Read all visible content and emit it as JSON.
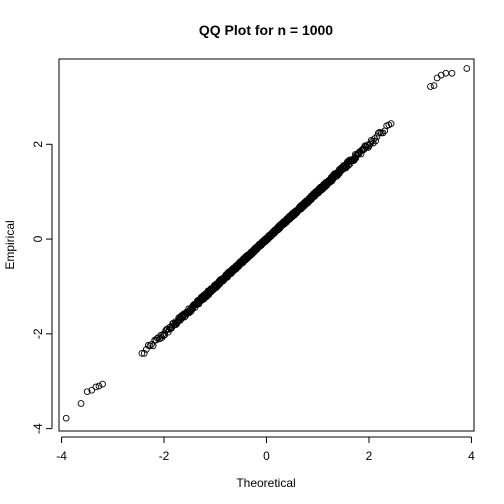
{
  "chart_data": {
    "type": "scatter",
    "title": "QQ Plot for n = 1000",
    "xlabel": "Theoretical",
    "ylabel": "Empirical",
    "n": 1000,
    "xlim": [
      -4.05,
      4.05
    ],
    "ylim": [
      -4.05,
      3.8
    ],
    "xticks": [
      -4,
      -2,
      0,
      2,
      4
    ],
    "yticks": [
      -4,
      -2,
      0,
      2
    ],
    "xtick_labels": [
      "-4",
      "-2",
      "0",
      "2",
      "4"
    ],
    "ytick_labels": [
      "-4",
      "-2",
      "0",
      "2"
    ],
    "marker": "open-circle",
    "grid": false,
    "legend": "none",
    "tail_points": [
      {
        "x": -3.91,
        "y": -3.78
      },
      {
        "x": -3.62,
        "y": -3.47
      },
      {
        "x": -3.5,
        "y": -3.22
      },
      {
        "x": -3.41,
        "y": -3.19
      },
      {
        "x": -3.33,
        "y": -3.12
      },
      {
        "x": -3.27,
        "y": -3.1
      },
      {
        "x": -3.2,
        "y": -3.06
      },
      {
        "x": 3.2,
        "y": 3.22
      },
      {
        "x": 3.27,
        "y": 3.24
      },
      {
        "x": 3.33,
        "y": 3.4
      },
      {
        "x": 3.41,
        "y": 3.46
      },
      {
        "x": 3.5,
        "y": 3.5
      },
      {
        "x": 3.62,
        "y": 3.5
      },
      {
        "x": 3.91,
        "y": 3.6
      }
    ],
    "colors": {
      "points": "#000000",
      "frame": "#000000",
      "background": "#ffffff"
    }
  }
}
